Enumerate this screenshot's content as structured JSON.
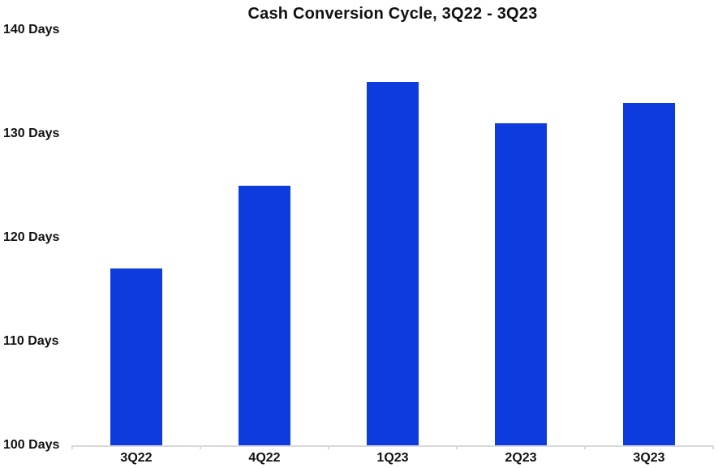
{
  "chart_data": {
    "type": "bar",
    "title": "Cash Conversion Cycle, 3Q22 - 3Q23",
    "categories": [
      "3Q22",
      "4Q22",
      "1Q23",
      "2Q23",
      "3Q23"
    ],
    "values": [
      117,
      125,
      135,
      131,
      133
    ],
    "unit": "Days",
    "xlabel": "",
    "ylabel": "",
    "ylim": [
      100,
      140
    ],
    "y_tick_step": 10,
    "y_ticks": [
      {
        "label": "140 Days",
        "value": 140
      },
      {
        "label": "130 Days",
        "value": 130
      },
      {
        "label": "120 Days",
        "value": 120
      },
      {
        "label": "110 Days",
        "value": 110
      },
      {
        "label": "100 Days",
        "value": 100
      }
    ],
    "grid": false,
    "legend": false,
    "colors": {
      "bar": "#0d3bdd",
      "axis": "#d9d9d9",
      "text": "#111111",
      "background": "#ffffff"
    }
  }
}
